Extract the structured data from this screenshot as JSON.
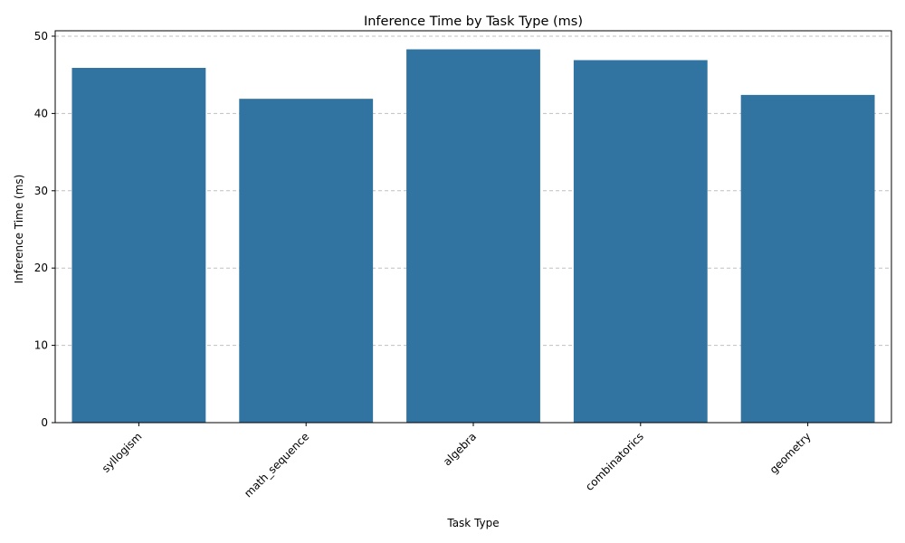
{
  "chart_data": {
    "type": "bar",
    "title": "Inference Time by Task Type (ms)",
    "xlabel": "Task Type",
    "ylabel": "Inference Time (ms)",
    "categories": [
      "syllogism",
      "math_sequence",
      "algebra",
      "combinatorics",
      "geometry"
    ],
    "values": [
      45.9,
      41.9,
      48.3,
      46.9,
      42.4
    ],
    "ylim": [
      0,
      50.7
    ],
    "yticks": [
      0,
      10,
      20,
      30,
      40,
      50
    ],
    "grid": "y dashed",
    "bar_color": "#3274a1",
    "grid_color": "#c0c0c0",
    "legend": "none"
  }
}
